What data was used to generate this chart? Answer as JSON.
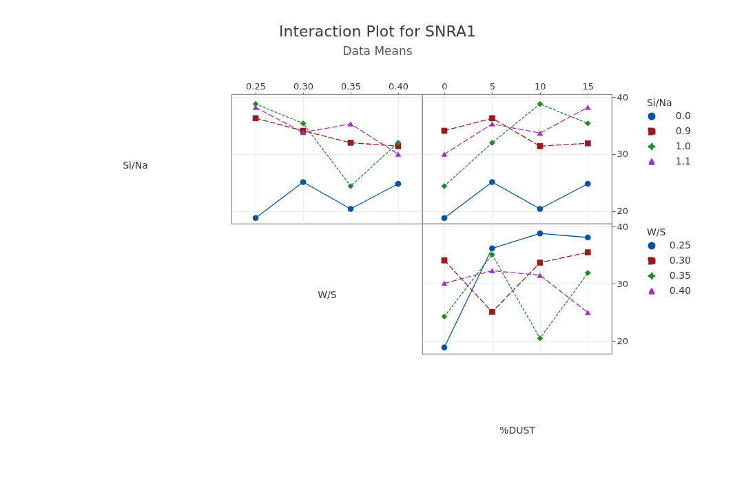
{
  "chart_data": [
    {
      "type": "line",
      "title": "Interaction Plot for SNRA1",
      "subtitle": "Data Means",
      "xlabel": "W/S",
      "ylabel": "Si/Na",
      "x": [
        0.25,
        0.3,
        0.35,
        0.4
      ],
      "xlim": [
        0.2246,
        0.4254
      ],
      "xticks": [
        {
          "value": 0.25,
          "label": "0.25"
        },
        {
          "value": 0.3,
          "label": "0.30"
        },
        {
          "value": 0.35,
          "label": "0.35"
        },
        {
          "value": 0.4,
          "label": "0.40"
        }
      ],
      "ylim": [
        17.8,
        40.5
      ],
      "yticks": [
        20,
        30,
        40
      ],
      "tick_labels": "x",
      "grid": true,
      "legend": false,
      "series": [
        {
          "color": "#0054a6",
          "marker": "circle",
          "line_style": "solid",
          "values": [
            18.8,
            25.1,
            20.4,
            24.8
          ]
        },
        {
          "color": "#9b1b1b",
          "marker": "square",
          "line_style": "dashed",
          "values": [
            36.3,
            34.1,
            32.0,
            31.4
          ]
        },
        {
          "color": "#1e8c2a",
          "marker": "diamond",
          "line_style": "dotted",
          "values": [
            38.8,
            35.4,
            24.4,
            32.0
          ]
        },
        {
          "color": "#a030c8",
          "marker": "triangle",
          "line_style": "dashed",
          "values": [
            38.2,
            33.8,
            35.3,
            30.0
          ]
        }
      ]
    },
    {
      "type": "line",
      "legend_title": "Si/Na",
      "x": [
        0,
        5,
        10,
        15
      ],
      "xlim": [
        -2.3,
        17.5
      ],
      "xticks": [
        0,
        5,
        10,
        15
      ],
      "ylim": [
        17.8,
        40.5
      ],
      "yticks": [
        20,
        30,
        40
      ],
      "grid": true,
      "legend": "right",
      "series": [
        {
          "name": "0.0",
          "color": "#0054a6",
          "marker": "circle",
          "line_style": "solid",
          "values": [
            18.8,
            25.1,
            20.4,
            24.8
          ]
        },
        {
          "name": "0.9",
          "color": "#9b1b1b",
          "marker": "square",
          "line_style": "dashed",
          "values": [
            34.1,
            36.3,
            31.4,
            31.9
          ]
        },
        {
          "name": "1.0",
          "color": "#1e8c2a",
          "marker": "diamond",
          "line_style": "dotted",
          "values": [
            24.4,
            32.0,
            38.8,
            35.4
          ]
        },
        {
          "name": "1.1",
          "color": "#a030c8",
          "marker": "triangle",
          "line_style": "dashed",
          "values": [
            30.0,
            35.3,
            33.7,
            38.2
          ]
        }
      ]
    },
    {
      "type": "line",
      "legend_title": "W/S",
      "xlabel": "%DUST",
      "x": [
        0,
        5,
        10,
        15
      ],
      "xlim": [
        -2.3,
        17.5
      ],
      "xticks": [
        0,
        5,
        10,
        15
      ],
      "ylim": [
        17.8,
        40.5
      ],
      "yticks": [
        20,
        30,
        40
      ],
      "tick_labels": "y",
      "grid": true,
      "legend": "right",
      "series": [
        {
          "name": "0.25",
          "color": "#0054a6",
          "marker": "circle",
          "line_style": "solid",
          "values": [
            18.9,
            36.2,
            38.8,
            38.1
          ]
        },
        {
          "name": "0.30",
          "color": "#9b1b1b",
          "marker": "square",
          "line_style": "dashed",
          "values": [
            34.1,
            25.1,
            33.7,
            35.5
          ]
        },
        {
          "name": "0.35",
          "color": "#1e8c2a",
          "marker": "diamond",
          "line_style": "dotted",
          "values": [
            24.3,
            35.1,
            20.5,
            31.9
          ]
        },
        {
          "name": "0.40",
          "color": "#a030c8",
          "marker": "triangle",
          "line_style": "dashed",
          "values": [
            30.1,
            32.3,
            31.5,
            25.0
          ]
        }
      ]
    }
  ]
}
